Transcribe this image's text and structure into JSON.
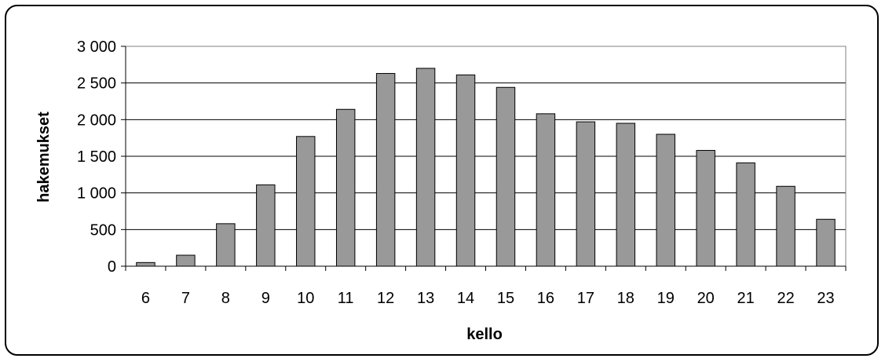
{
  "chart_data": {
    "type": "bar",
    "title": "",
    "xlabel": "kello",
    "ylabel": "hakemukset",
    "categories": [
      "6",
      "7",
      "8",
      "9",
      "10",
      "11",
      "12",
      "13",
      "14",
      "15",
      "16",
      "17",
      "18",
      "19",
      "20",
      "21",
      "22",
      "23"
    ],
    "values": [
      50,
      150,
      580,
      1110,
      1770,
      2140,
      2630,
      2700,
      2610,
      2440,
      2080,
      1970,
      1950,
      1800,
      1580,
      1410,
      1090,
      640
    ],
    "ylim": [
      0,
      3000
    ],
    "yticks": [
      0,
      500,
      1000,
      1500,
      2000,
      2500,
      3000
    ],
    "ytick_labels": [
      "0",
      "500",
      "1 000",
      "1 500",
      "2 000",
      "2 500",
      "3 000"
    ],
    "grid": true,
    "legend": "none",
    "colors": {
      "bar_fill": "#999999",
      "bar_stroke": "#000000",
      "gridline": "#000000",
      "plot_border": "#808080"
    }
  }
}
